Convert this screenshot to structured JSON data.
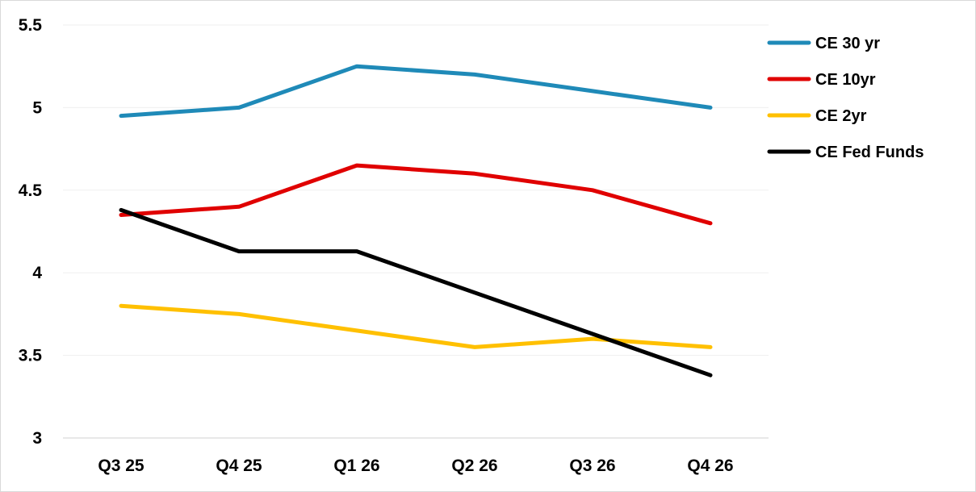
{
  "chart_data": {
    "type": "line",
    "categories": [
      "Q3 25",
      "Q4 25",
      "Q1 26",
      "Q2 26",
      "Q3 26",
      "Q4 26"
    ],
    "ylim": [
      3,
      5.5
    ],
    "yticks": [
      "3",
      "3.5",
      "4",
      "4.5",
      "5",
      "5.5"
    ],
    "ytick_values": [
      3,
      3.5,
      4,
      4.5,
      5,
      5.5
    ],
    "grid": "horizontal",
    "legend_position": "right",
    "series": [
      {
        "name": "CE 30 yr",
        "color": "#1f8ab8",
        "values": [
          4.95,
          5.0,
          5.25,
          5.2,
          5.1,
          5.0
        ]
      },
      {
        "name": "CE 10yr",
        "color": "#e00000",
        "values": [
          4.35,
          4.4,
          4.65,
          4.6,
          4.5,
          4.3
        ]
      },
      {
        "name": "CE 2yr",
        "color": "#ffc000",
        "values": [
          3.8,
          3.75,
          3.65,
          3.55,
          3.6,
          3.55
        ]
      },
      {
        "name": "CE Fed Funds",
        "color": "#000000",
        "values": [
          4.38,
          4.13,
          4.13,
          3.88,
          3.63,
          3.38
        ]
      }
    ]
  }
}
